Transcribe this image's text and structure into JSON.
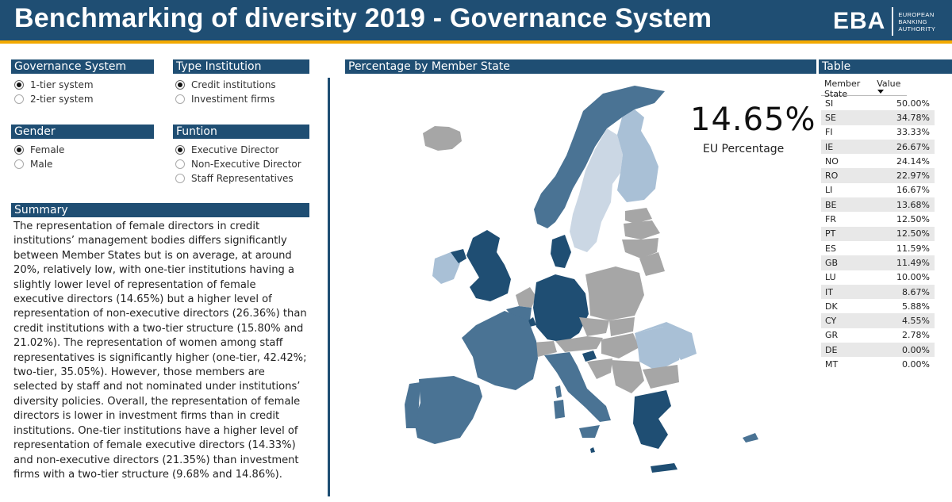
{
  "header": {
    "title": "Benchmarking of diversity 2019 - Governance System",
    "logo_mark": "EBA",
    "logo_line1": "EUROPEAN",
    "logo_line2": "BANKING",
    "logo_line3": "AUTHORITY"
  },
  "filters": {
    "governance": {
      "title": "Governance System",
      "options": [
        "1-tier system",
        "2-tier system"
      ],
      "selected": "1-tier system"
    },
    "type": {
      "title": "Type Institution",
      "options": [
        "Credit institutions",
        "Investiment firms"
      ],
      "selected": "Credit institutions"
    },
    "gender": {
      "title": "Gender",
      "options": [
        "Female",
        "Male"
      ],
      "selected": "Female"
    },
    "function": {
      "title": "Funtion",
      "options": [
        "Executive Director",
        "Non-Executive Director",
        "Staff Representatives"
      ],
      "selected": "Executive Director"
    }
  },
  "summary": {
    "title": "Summary",
    "text": "The representation of female directors in credit institutions’ management bodies differs significantly between Member States but is on average, at around 20%, relatively low, with one-tier institutions having a slightly lower level of representation of female executive directors (14.65%) but a higher level of representation of non-executive directors (26.36%) than credit institutions with a two-tier structure (15.80% and 21.02%). The representation of women among staff representatives is significantly higher (one-tier, 42.42%; two-tier, 35.05%). However, those members are selected by staff and not nominated under institutions’ diversity policies.  Overall, the representation of female directors is lower in investment firms than in credit institutions. One-tier institutions have a higher level of representation of female executive directors (14.33%) and non-executive directors (21.35%) than investment firms with a two-tier structure (9.68% and 14.86%)."
  },
  "map": {
    "title": "Percentage by Member State",
    "kpi_value": "14.65%",
    "kpi_label": "EU Percentage",
    "colors": {
      "dark": "#1f4e73",
      "mid": "#4a7394",
      "light": "#a9c0d6",
      "nodata": "#a6a6a6"
    }
  },
  "table": {
    "title": "Table",
    "col_member": "Member State",
    "col_value": "Value",
    "rows": [
      {
        "ms": "SI",
        "value": "50.00%"
      },
      {
        "ms": "SE",
        "value": "34.78%"
      },
      {
        "ms": "FI",
        "value": "33.33%"
      },
      {
        "ms": "IE",
        "value": "26.67%"
      },
      {
        "ms": "NO",
        "value": "24.14%"
      },
      {
        "ms": "RO",
        "value": "22.97%"
      },
      {
        "ms": "LI",
        "value": "16.67%"
      },
      {
        "ms": "BE",
        "value": "13.68%"
      },
      {
        "ms": "FR",
        "value": "12.50%"
      },
      {
        "ms": "PT",
        "value": "12.50%"
      },
      {
        "ms": "ES",
        "value": "11.59%"
      },
      {
        "ms": "GB",
        "value": "11.49%"
      },
      {
        "ms": "LU",
        "value": "10.00%"
      },
      {
        "ms": "IT",
        "value": "8.67%"
      },
      {
        "ms": "DK",
        "value": "5.88%"
      },
      {
        "ms": "CY",
        "value": "4.55%"
      },
      {
        "ms": "GR",
        "value": "2.78%"
      },
      {
        "ms": "DE",
        "value": "0.00%"
      },
      {
        "ms": "MT",
        "value": "0.00%"
      }
    ]
  }
}
